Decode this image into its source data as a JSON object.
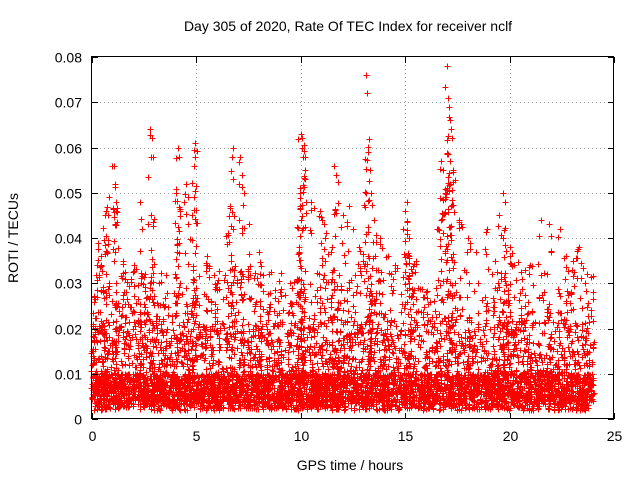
{
  "chart_data": {
    "type": "scatter",
    "title": "Day 305 of 2020, Rate Of TEC Index for receiver nclf",
    "xlabel": "GPS time / hours",
    "ylabel": "ROTI / TECUs",
    "xlim": [
      0,
      25
    ],
    "ylim": [
      0,
      0.08
    ],
    "xticks": [
      0,
      5,
      10,
      15,
      20,
      25
    ],
    "yticks": [
      0,
      0.01,
      0.02,
      0.03,
      0.04,
      0.05,
      0.06,
      0.07,
      0.08
    ],
    "xtick_labels": [
      "0",
      "5",
      "10",
      "15",
      "20",
      "25"
    ],
    "ytick_labels": [
      "0",
      "0.01",
      "0.02",
      "0.03",
      "0.04",
      "0.05",
      "0.06",
      "0.07",
      "0.08"
    ],
    "grid": true,
    "marker": "+",
    "color": "#ff0000",
    "x_range_data": [
      0,
      24
    ],
    "series": [
      {
        "name": "ROTI",
        "points": [
          [
            0.05,
            0.021
          ],
          [
            0.1,
            0.027
          ],
          [
            0.3,
            0.039
          ],
          [
            0.45,
            0.036
          ],
          [
            0.6,
            0.045
          ],
          [
            0.65,
            0.046
          ],
          [
            0.8,
            0.049
          ],
          [
            1.05,
            0.056
          ],
          [
            1.1,
            0.052
          ],
          [
            1.15,
            0.048
          ],
          [
            1.5,
            0.035
          ],
          [
            1.6,
            0.031
          ],
          [
            2.0,
            0.034
          ],
          [
            2.3,
            0.048
          ],
          [
            2.4,
            0.042
          ],
          [
            2.55,
            0.032
          ],
          [
            2.7,
            0.043
          ],
          [
            2.8,
            0.064
          ],
          [
            2.85,
            0.062
          ],
          [
            2.9,
            0.058
          ],
          [
            3.2,
            0.03
          ],
          [
            3.5,
            0.025
          ],
          [
            4.0,
            0.05
          ],
          [
            4.1,
            0.06
          ],
          [
            4.15,
            0.058
          ],
          [
            4.5,
            0.052
          ],
          [
            4.6,
            0.049
          ],
          [
            4.8,
            0.045
          ],
          [
            4.9,
            0.056
          ],
          [
            4.95,
            0.061
          ],
          [
            5.5,
            0.036
          ],
          [
            6.0,
            0.03
          ],
          [
            6.5,
            0.041
          ],
          [
            6.6,
            0.047
          ],
          [
            6.7,
            0.058
          ],
          [
            6.75,
            0.06
          ],
          [
            7.1,
            0.058
          ],
          [
            7.2,
            0.054
          ],
          [
            7.5,
            0.043
          ],
          [
            8.0,
            0.037
          ],
          [
            8.5,
            0.032
          ],
          [
            9.0,
            0.028
          ],
          [
            9.5,
            0.03
          ],
          [
            9.9,
            0.038
          ],
          [
            9.95,
            0.05
          ],
          [
            10.0,
            0.063
          ],
          [
            10.05,
            0.062
          ],
          [
            10.1,
            0.058
          ],
          [
            10.2,
            0.055
          ],
          [
            10.5,
            0.048
          ],
          [
            10.9,
            0.046
          ],
          [
            11.0,
            0.044
          ],
          [
            11.2,
            0.041
          ],
          [
            11.5,
            0.038
          ],
          [
            11.6,
            0.056
          ],
          [
            11.7,
            0.054
          ],
          [
            12.0,
            0.045
          ],
          [
            12.3,
            0.047
          ],
          [
            12.5,
            0.042
          ],
          [
            12.8,
            0.038
          ],
          [
            13.1,
            0.076
          ],
          [
            13.15,
            0.072
          ],
          [
            13.2,
            0.059
          ],
          [
            13.3,
            0.055
          ],
          [
            13.35,
            0.05
          ],
          [
            13.5,
            0.044
          ],
          [
            13.8,
            0.04
          ],
          [
            14.2,
            0.036
          ],
          [
            14.5,
            0.034
          ],
          [
            14.9,
            0.042
          ],
          [
            15.0,
            0.046
          ],
          [
            15.1,
            0.048
          ],
          [
            15.2,
            0.04
          ],
          [
            15.5,
            0.035
          ],
          [
            16.0,
            0.028
          ],
          [
            16.5,
            0.042
          ],
          [
            16.7,
            0.057
          ],
          [
            16.8,
            0.055
          ],
          [
            16.9,
            0.05
          ],
          [
            17.0,
            0.078
          ],
          [
            17.05,
            0.071
          ],
          [
            17.1,
            0.069
          ],
          [
            17.15,
            0.066
          ],
          [
            17.2,
            0.064
          ],
          [
            17.3,
            0.055
          ],
          [
            17.6,
            0.044
          ],
          [
            18.0,
            0.04
          ],
          [
            18.4,
            0.037
          ],
          [
            18.9,
            0.042
          ],
          [
            19.3,
            0.035
          ],
          [
            19.5,
            0.045
          ],
          [
            19.7,
            0.05
          ],
          [
            19.8,
            0.048
          ],
          [
            20.0,
            0.038
          ],
          [
            20.2,
            0.034
          ],
          [
            20.6,
            0.031
          ],
          [
            21.0,
            0.034
          ],
          [
            21.5,
            0.044
          ],
          [
            21.9,
            0.043
          ],
          [
            22.4,
            0.042
          ],
          [
            22.7,
            0.036
          ],
          [
            23.0,
            0.033
          ],
          [
            23.3,
            0.038
          ],
          [
            23.6,
            0.03
          ],
          [
            23.9,
            0.024
          ]
        ]
      }
    ]
  }
}
